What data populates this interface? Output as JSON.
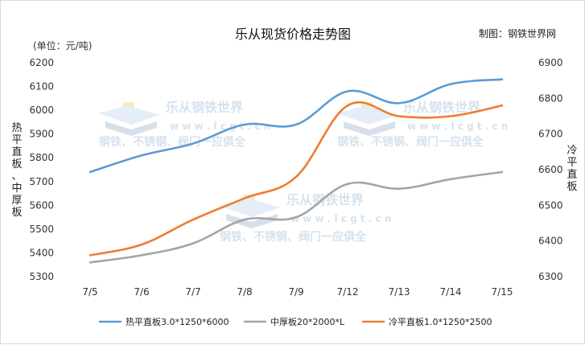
{
  "chart_data": {
    "type": "line",
    "title": "乐从现货价格走势图",
    "source": "制图：钢铁世界网",
    "unit": "(单位：元/吨)",
    "ylabel_left": "热平直板、中厚板",
    "ylabel_right": "冷平直板",
    "categories": [
      "7/5",
      "7/6",
      "7/7",
      "7/8",
      "7/9",
      "7/12",
      "7/13",
      "7/14",
      "7/15"
    ],
    "ylim_left": [
      5300,
      6200
    ],
    "ylim_right": [
      6300,
      6900
    ],
    "yticks_left": [
      5300,
      5400,
      5500,
      5600,
      5700,
      5800,
      5900,
      6000,
      6100,
      6200
    ],
    "yticks_right": [
      6300,
      6400,
      6500,
      6600,
      6700,
      6800,
      6900
    ],
    "grid": false,
    "legend_position": "bottom",
    "series": [
      {
        "name": "热平直板3.0*1250*6000",
        "axis": "left",
        "color": "#5b9bd5",
        "values": [
          5740,
          5810,
          5860,
          5940,
          5940,
          6080,
          6030,
          6110,
          6130
        ]
      },
      {
        "name": "中厚板20*2000*L",
        "axis": "left",
        "color": "#a5a5a5",
        "values": [
          5360,
          5390,
          5440,
          5540,
          5550,
          5690,
          5670,
          5710,
          5740
        ]
      },
      {
        "name": "冷平直板1.0*1250*2500",
        "axis": "right",
        "color": "#ed7d31",
        "values": [
          6360,
          6390,
          6460,
          6520,
          6580,
          6780,
          6750,
          6750,
          6780
        ]
      }
    ]
  },
  "watermark": {
    "brand": "乐从钢铁世界",
    "url": "w w w . l c g t . c n",
    "slogan": "钢铁、不锈钢、阀门一应俱全"
  }
}
